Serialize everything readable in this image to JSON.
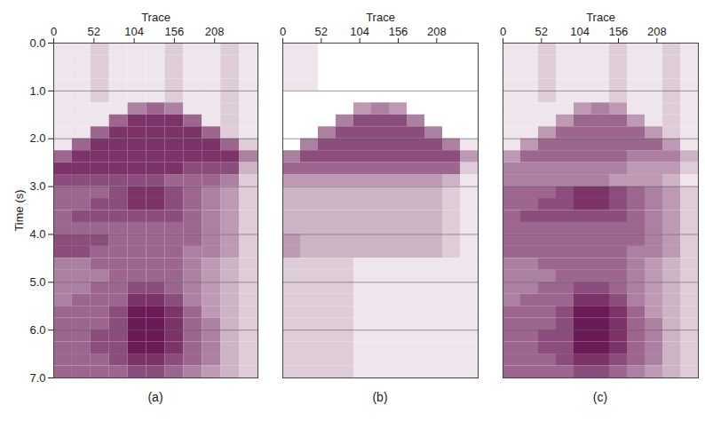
{
  "chart_data": [
    {
      "type": "heatmap",
      "caption": "(a)",
      "x_label": "Trace",
      "y_label": "Time (s)",
      "xlim": [
        0,
        264
      ],
      "xticks": [
        0,
        52,
        104,
        156,
        208
      ],
      "ylim": [
        0,
        7
      ],
      "yticks": [
        0,
        1,
        2,
        3,
        4,
        5,
        6,
        7
      ],
      "grid": true,
      "clim": [
        0,
        9
      ],
      "cells": [
        [
          1,
          1,
          2,
          1,
          1,
          1,
          2,
          1,
          1,
          2,
          1
        ],
        [
          1,
          1,
          2,
          1,
          1,
          1,
          2,
          1,
          1,
          2,
          1
        ],
        [
          1,
          1,
          2,
          1,
          1,
          1,
          2,
          1,
          1,
          2,
          1
        ],
        [
          1,
          1,
          2,
          1,
          1,
          1,
          2,
          1,
          1,
          2,
          1
        ],
        [
          1,
          1,
          2,
          1,
          1,
          1,
          2,
          1,
          1,
          2,
          1
        ],
        [
          1,
          1,
          1,
          1,
          5,
          6,
          5,
          1,
          1,
          2,
          1
        ],
        [
          1,
          1,
          1,
          6,
          8,
          8,
          8,
          6,
          1,
          2,
          1
        ],
        [
          1,
          1,
          6,
          8,
          8,
          8,
          8,
          8,
          6,
          2,
          1
        ],
        [
          1,
          6,
          8,
          8,
          8,
          8,
          8,
          8,
          8,
          6,
          2
        ],
        [
          6,
          8,
          8,
          8,
          8,
          8,
          8,
          8,
          8,
          8,
          5
        ],
        [
          8,
          8,
          8,
          8,
          8,
          8,
          8,
          7,
          7,
          7,
          3
        ],
        [
          7,
          7,
          7,
          7,
          7,
          7,
          6,
          6,
          6,
          5,
          2
        ],
        [
          6,
          6,
          6,
          7,
          8,
          8,
          7,
          6,
          5,
          4,
          2
        ],
        [
          6,
          6,
          7,
          7,
          8,
          8,
          7,
          6,
          5,
          4,
          2
        ],
        [
          6,
          7,
          7,
          7,
          7,
          7,
          7,
          6,
          5,
          4,
          2
        ],
        [
          6,
          6,
          6,
          6,
          6,
          6,
          6,
          6,
          5,
          4,
          2
        ],
        [
          7,
          7,
          7,
          6,
          6,
          6,
          6,
          6,
          5,
          4,
          2
        ],
        [
          7,
          7,
          6,
          6,
          6,
          6,
          6,
          5,
          5,
          4,
          2
        ],
        [
          5,
          5,
          6,
          6,
          6,
          6,
          6,
          5,
          4,
          3,
          2
        ],
        [
          5,
          5,
          5,
          6,
          6,
          6,
          6,
          5,
          4,
          3,
          2
        ],
        [
          5,
          5,
          6,
          6,
          7,
          7,
          6,
          5,
          4,
          3,
          2
        ],
        [
          5,
          6,
          6,
          6,
          8,
          8,
          7,
          5,
          4,
          3,
          2
        ],
        [
          6,
          6,
          6,
          7,
          9,
          9,
          8,
          6,
          4,
          3,
          2
        ],
        [
          6,
          6,
          6,
          7,
          9,
          9,
          8,
          6,
          5,
          3,
          2
        ],
        [
          6,
          6,
          7,
          7,
          9,
          9,
          8,
          6,
          5,
          3,
          2
        ],
        [
          6,
          6,
          7,
          7,
          9,
          9,
          8,
          6,
          5,
          3,
          2
        ],
        [
          6,
          6,
          6,
          7,
          8,
          8,
          7,
          6,
          5,
          3,
          2
        ],
        [
          6,
          6,
          6,
          6,
          7,
          7,
          6,
          5,
          4,
          3,
          2
        ]
      ]
    },
    {
      "type": "heatmap",
      "caption": "(b)",
      "x_label": "Trace",
      "tick_labels": "x",
      "xlim": [
        0,
        264
      ],
      "xticks": [
        0,
        52,
        104,
        156,
        208
      ],
      "ylim": [
        0,
        7
      ],
      "yticks": [
        0,
        1,
        2,
        3,
        4,
        5,
        6,
        7
      ],
      "grid": true,
      "clim": [
        0,
        9
      ],
      "cells": [
        [
          1,
          1,
          0,
          0,
          0,
          0,
          0,
          0,
          0,
          0,
          0
        ],
        [
          1,
          1,
          0,
          0,
          0,
          0,
          0,
          0,
          0,
          0,
          0
        ],
        [
          1,
          1,
          0,
          0,
          0,
          0,
          0,
          0,
          0,
          0,
          0
        ],
        [
          1,
          1,
          0,
          0,
          0,
          0,
          0,
          0,
          0,
          0,
          0
        ],
        [
          0,
          0,
          0,
          0,
          0,
          0,
          0,
          0,
          0,
          0,
          0
        ],
        [
          0,
          0,
          0,
          0,
          4,
          5,
          4,
          0,
          0,
          0,
          0
        ],
        [
          0,
          0,
          0,
          5,
          7,
          7,
          7,
          5,
          0,
          0,
          0
        ],
        [
          0,
          0,
          5,
          7,
          7,
          7,
          7,
          7,
          5,
          0,
          0
        ],
        [
          0,
          5,
          7,
          7,
          7,
          7,
          7,
          7,
          7,
          5,
          1
        ],
        [
          5,
          7,
          7,
          7,
          7,
          7,
          7,
          7,
          7,
          7,
          4
        ],
        [
          6,
          6,
          6,
          6,
          6,
          6,
          6,
          6,
          6,
          6,
          2
        ],
        [
          4,
          4,
          4,
          4,
          4,
          4,
          4,
          4,
          4,
          3,
          1
        ],
        [
          3,
          3,
          3,
          3,
          3,
          3,
          3,
          3,
          3,
          2,
          1
        ],
        [
          3,
          3,
          3,
          3,
          3,
          3,
          3,
          3,
          3,
          2,
          1
        ],
        [
          3,
          3,
          3,
          3,
          3,
          3,
          3,
          3,
          3,
          2,
          1
        ],
        [
          3,
          3,
          3,
          3,
          3,
          3,
          3,
          3,
          3,
          2,
          1
        ],
        [
          4,
          3,
          3,
          3,
          3,
          3,
          3,
          3,
          3,
          2,
          1
        ],
        [
          4,
          3,
          3,
          3,
          3,
          3,
          3,
          3,
          3,
          2,
          1
        ],
        [
          2,
          2,
          2,
          2,
          1,
          1,
          1,
          1,
          1,
          1,
          1
        ],
        [
          2,
          2,
          2,
          2,
          1,
          1,
          1,
          1,
          1,
          1,
          1
        ],
        [
          2,
          2,
          2,
          2,
          1,
          1,
          1,
          1,
          1,
          1,
          1
        ],
        [
          2,
          2,
          2,
          2,
          1,
          1,
          1,
          1,
          1,
          1,
          1
        ],
        [
          2,
          2,
          2,
          2,
          1,
          1,
          1,
          1,
          1,
          1,
          1
        ],
        [
          2,
          2,
          2,
          2,
          1,
          1,
          1,
          1,
          1,
          1,
          1
        ],
        [
          2,
          2,
          2,
          2,
          1,
          1,
          1,
          1,
          1,
          1,
          1
        ],
        [
          2,
          2,
          2,
          2,
          1,
          1,
          1,
          1,
          1,
          1,
          1
        ],
        [
          2,
          2,
          2,
          2,
          1,
          1,
          1,
          1,
          1,
          1,
          1
        ],
        [
          2,
          2,
          2,
          2,
          1,
          1,
          1,
          1,
          1,
          1,
          1
        ]
      ]
    },
    {
      "type": "heatmap",
      "caption": "(c)",
      "x_label": "Trace",
      "tick_labels": "x",
      "xlim": [
        0,
        264
      ],
      "xticks": [
        0,
        52,
        104,
        156,
        208
      ],
      "ylim": [
        0,
        7
      ],
      "yticks": [
        0,
        1,
        2,
        3,
        4,
        5,
        6,
        7
      ],
      "grid": true,
      "clim": [
        0,
        9
      ],
      "cells": [
        [
          1,
          1,
          2,
          1,
          1,
          1,
          2,
          1,
          1,
          2,
          1
        ],
        [
          1,
          1,
          2,
          1,
          1,
          1,
          2,
          1,
          1,
          2,
          1
        ],
        [
          1,
          1,
          2,
          1,
          1,
          1,
          2,
          1,
          1,
          2,
          1
        ],
        [
          1,
          1,
          2,
          1,
          1,
          1,
          2,
          1,
          1,
          2,
          1
        ],
        [
          1,
          1,
          2,
          1,
          1,
          1,
          2,
          1,
          1,
          2,
          1
        ],
        [
          1,
          1,
          1,
          1,
          4,
          5,
          4,
          1,
          1,
          2,
          1
        ],
        [
          1,
          1,
          1,
          4,
          6,
          6,
          6,
          4,
          1,
          2,
          1
        ],
        [
          1,
          1,
          4,
          6,
          6,
          6,
          6,
          6,
          4,
          2,
          1
        ],
        [
          1,
          4,
          6,
          6,
          6,
          6,
          6,
          6,
          6,
          4,
          1
        ],
        [
          4,
          6,
          6,
          6,
          6,
          6,
          6,
          5,
          5,
          5,
          3
        ],
        [
          5,
          5,
          5,
          5,
          5,
          5,
          5,
          4,
          4,
          4,
          2
        ],
        [
          5,
          5,
          5,
          5,
          5,
          5,
          4,
          4,
          4,
          3,
          1
        ],
        [
          6,
          6,
          6,
          7,
          8,
          8,
          7,
          6,
          5,
          4,
          2
        ],
        [
          6,
          6,
          7,
          7,
          8,
          8,
          7,
          6,
          5,
          4,
          2
        ],
        [
          6,
          7,
          7,
          7,
          7,
          7,
          7,
          6,
          5,
          4,
          2
        ],
        [
          6,
          6,
          6,
          6,
          6,
          6,
          6,
          6,
          5,
          4,
          2
        ],
        [
          6,
          6,
          6,
          6,
          6,
          6,
          6,
          6,
          5,
          4,
          2
        ],
        [
          6,
          6,
          6,
          6,
          6,
          6,
          6,
          5,
          5,
          4,
          2
        ],
        [
          5,
          5,
          6,
          6,
          6,
          6,
          6,
          5,
          4,
          3,
          2
        ],
        [
          5,
          5,
          5,
          6,
          6,
          6,
          6,
          5,
          4,
          3,
          2
        ],
        [
          5,
          5,
          6,
          6,
          7,
          7,
          6,
          5,
          4,
          3,
          2
        ],
        [
          5,
          6,
          6,
          6,
          8,
          8,
          7,
          5,
          4,
          3,
          2
        ],
        [
          6,
          6,
          6,
          7,
          9,
          9,
          8,
          6,
          4,
          3,
          2
        ],
        [
          6,
          6,
          6,
          7,
          9,
          9,
          8,
          6,
          5,
          3,
          2
        ],
        [
          6,
          6,
          7,
          7,
          9,
          9,
          8,
          6,
          5,
          3,
          2
        ],
        [
          6,
          6,
          7,
          7,
          9,
          9,
          8,
          6,
          5,
          3,
          2
        ],
        [
          6,
          6,
          6,
          7,
          8,
          8,
          7,
          6,
          5,
          3,
          2
        ],
        [
          6,
          6,
          6,
          6,
          7,
          7,
          6,
          5,
          4,
          3,
          2
        ]
      ]
    }
  ]
}
